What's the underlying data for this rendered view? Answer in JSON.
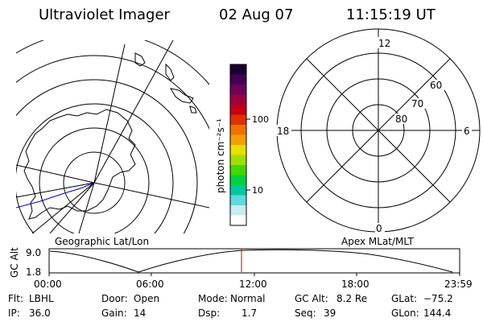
{
  "header": {
    "instrument": "Ultraviolet Imager",
    "date": "02 Aug 07",
    "time": "11:15:19 UT"
  },
  "colorbar": {
    "label": "photon cm⁻²s⁻¹",
    "tick_labels": [
      "100",
      "10"
    ],
    "colors": [
      "#1a0033",
      "#400050",
      "#70005a",
      "#a00040",
      "#c80010",
      "#e03000",
      "#f07000",
      "#f0a000",
      "#e8e000",
      "#a0e000",
      "#40d800",
      "#00d040",
      "#00c8a0",
      "#60d8e0",
      "#c8ecf0",
      "#ffffff"
    ]
  },
  "left_map": {
    "caption": "Geographic Lat/Lon",
    "coast_color": "#000000",
    "track_color": "#0000cc"
  },
  "right_map": {
    "caption": "Apex MLat/MLT",
    "mlt_labels": {
      "top": "12",
      "left": "18",
      "right": "6",
      "bottom": "0"
    },
    "lat_labels": [
      "60",
      "70",
      "80"
    ]
  },
  "gc_alt_plot": {
    "ylabel": "GC Alt",
    "ytick_labels": [
      "9.0",
      "1.8"
    ],
    "xtick_labels": [
      "00:00",
      "06:00",
      "12:00",
      "18:00",
      "23:59"
    ],
    "marker_color": "#cc0000"
  },
  "status": {
    "row1": [
      {
        "label": "Flt:",
        "value": "LBHL"
      },
      {
        "label": "Door:",
        "value": "Open"
      },
      {
        "label": "Mode:",
        "value": "Normal"
      },
      {
        "label": "GC Alt:",
        "value": "8.2 Re"
      },
      {
        "label": "GLat:",
        "value": "−75.2"
      }
    ],
    "row2": [
      {
        "label": "IP:",
        "value": "36.0"
      },
      {
        "label": "Gain:",
        "value": "14"
      },
      {
        "label": "Dsp:",
        "value": "1.7"
      },
      {
        "label": "Seq:",
        "value": "39"
      },
      {
        "label": "GLon:",
        "value": "144.4"
      }
    ]
  }
}
